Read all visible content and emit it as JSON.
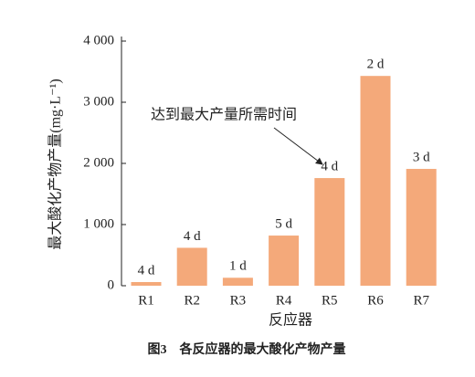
{
  "chart_data": {
    "type": "bar",
    "y_label": "最大酸化产物产量(mg·L⁻¹)",
    "x_label": "反应器",
    "caption": "图3　各反应器的最大酸化产物产量",
    "annotation": "达到最大产量所需时间",
    "categories": [
      "R1",
      "R2",
      "R3",
      "R4",
      "R5",
      "R6",
      "R7"
    ],
    "values": [
      60,
      620,
      130,
      820,
      1760,
      3430,
      1910
    ],
    "labels": [
      "4 d",
      "4 d",
      "1 d",
      "5 d",
      "4 d",
      "2 d",
      "3 d"
    ],
    "color": "#f4a97a",
    "ylim": [
      0,
      4000
    ],
    "yticks": [
      0,
      {
        "value": 1000,
        "label": "1 000"
      },
      {
        "value": 2000,
        "label": "2 000"
      },
      {
        "value": 3000,
        "label": "3 000"
      },
      {
        "value": 4000,
        "label": "4 000"
      }
    ]
  }
}
